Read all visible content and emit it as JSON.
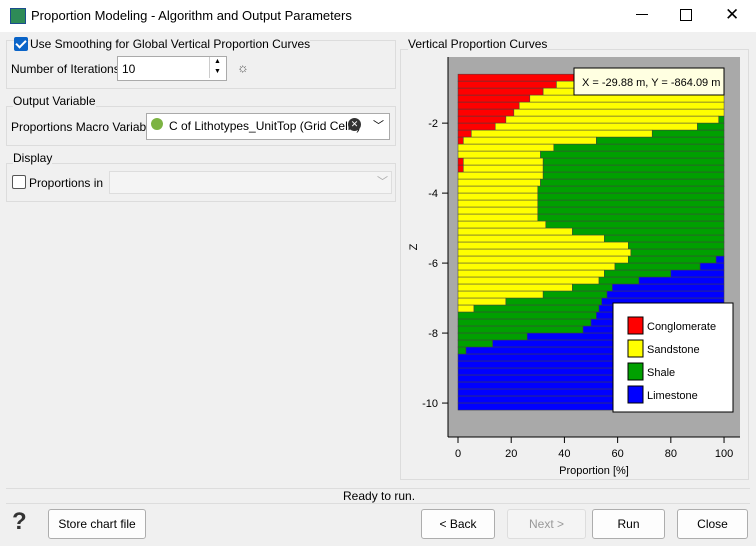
{
  "window": {
    "title": "Proportion Modeling - Algorithm and Output Parameters"
  },
  "smoothing": {
    "label": "Use Smoothing for Global Vertical Proportion Curves",
    "checked": true,
    "iterations_label": "Number of Iterations",
    "iterations": 10
  },
  "output": {
    "title": "Output Variable",
    "label": "Proportions Macro Variable",
    "value": "C of Lithotypes_UnitTop (Grid Cells)"
  },
  "display": {
    "title": "Display",
    "label": "Proportions in",
    "checked": false
  },
  "chart_panel": {
    "title": "Vertical Proportion Curves"
  },
  "status": "Ready to run.",
  "buttons": {
    "store": "Store chart file",
    "back": "< Back",
    "next": "Next >",
    "run": "Run",
    "close": "Close"
  },
  "chart_data": {
    "type": "bar",
    "orientation": "horizontal",
    "stacked": true,
    "xlabel": "Proportion [%]",
    "ylabel": "Z",
    "annotation": "X = -29.88 m, Y = -864.09 m",
    "xlim": [
      -3.76,
      106
    ],
    "ylim": [
      -10.97,
      -0.11
    ],
    "xticks": [
      0,
      20,
      40,
      60,
      80,
      100
    ],
    "yticks": [
      -2,
      -4,
      -6,
      -8,
      -10
    ],
    "legend": "lower right",
    "background": "#a9a9a9",
    "y": [
      -0.7,
      -0.9,
      -1.1,
      -1.3,
      -1.5,
      -1.7,
      -1.9,
      -2.1,
      -2.3,
      -2.5,
      -2.7,
      -2.9,
      -3.1,
      -3.3,
      -3.5,
      -3.7,
      -3.9,
      -4.1,
      -4.3,
      -4.5,
      -4.7,
      -4.9,
      -5.1,
      -5.3,
      -5.5,
      -5.7,
      -5.9,
      -6.1,
      -6.3,
      -6.5,
      -6.7,
      -6.9,
      -7.1,
      -7.3,
      -7.5,
      -7.7,
      -7.9,
      -8.1,
      -8.3,
      -8.5,
      -8.7,
      -8.9,
      -9.1,
      -9.3,
      -9.5,
      -9.7,
      -9.9,
      -10.1
    ],
    "series": [
      {
        "name": "Conglomerate",
        "color": "#ff0000",
        "values": [
          44,
          37,
          32,
          27,
          23,
          21,
          18,
          14,
          5,
          2,
          0,
          0,
          2,
          2,
          0,
          0,
          0,
          0,
          0,
          0,
          0,
          0,
          0,
          0,
          0,
          0,
          0,
          0,
          0,
          0,
          0,
          0,
          0,
          0,
          0,
          0,
          0,
          0,
          0,
          0,
          0,
          0,
          0,
          0,
          0,
          0,
          0,
          0
        ]
      },
      {
        "name": "Sandstone",
        "color": "#ffff00",
        "values": [
          56,
          63,
          68,
          73,
          77,
          79,
          80,
          76,
          68,
          50,
          36,
          31,
          30,
          30,
          32,
          31,
          30,
          30,
          30,
          30,
          30,
          33,
          43,
          55,
          64,
          65,
          64,
          59,
          55,
          53,
          43,
          32,
          18,
          6,
          0,
          0,
          0,
          0,
          0,
          0,
          0,
          0,
          0,
          0,
          0,
          0,
          0,
          0
        ]
      },
      {
        "name": "Shale",
        "color": "#00a000",
        "values": [
          0,
          0,
          0,
          0,
          0,
          0,
          2,
          10,
          27,
          48,
          64,
          69,
          68,
          68,
          68,
          69,
          70,
          70,
          70,
          70,
          70,
          67,
          57,
          45,
          36,
          35,
          33,
          32,
          25,
          15,
          15,
          24,
          36,
          47,
          52,
          50,
          47,
          26,
          13,
          3,
          0,
          0,
          0,
          0,
          0,
          0,
          0,
          0
        ]
      },
      {
        "name": "Limestone",
        "color": "#0000ff",
        "values": [
          0,
          0,
          0,
          0,
          0,
          0,
          0,
          0,
          0,
          0,
          0,
          0,
          0,
          0,
          0,
          0,
          0,
          0,
          0,
          0,
          0,
          0,
          0,
          0,
          0,
          0,
          3,
          9,
          20,
          32,
          42,
          44,
          46,
          47,
          48,
          50,
          53,
          74,
          87,
          97,
          100,
          100,
          100,
          100,
          100,
          100,
          100,
          100
        ]
      }
    ]
  }
}
